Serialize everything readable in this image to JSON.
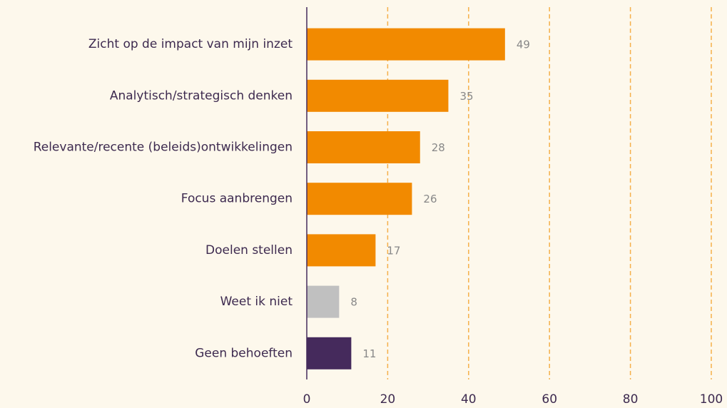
{
  "chart_data": {
    "type": "bar",
    "orientation": "horizontal",
    "categories": [
      "Zicht op de impact van mijn inzet",
      "Analytisch/strategisch denken",
      "Relevante/recente (beleids)ontwikkelingen",
      "Focus aanbrengen",
      "Doelen stellen",
      "Weet ik niet",
      "Geen behoeften"
    ],
    "values": [
      49,
      35,
      28,
      26,
      17,
      8,
      11
    ],
    "colors": [
      "#f28a00",
      "#f28a00",
      "#f28a00",
      "#f28a00",
      "#f28a00",
      "#c0c0c0",
      "#452a5c"
    ],
    "xlim": [
      0,
      100
    ],
    "xticks": [
      0,
      20,
      40,
      60,
      80,
      100
    ],
    "grid": true
  }
}
